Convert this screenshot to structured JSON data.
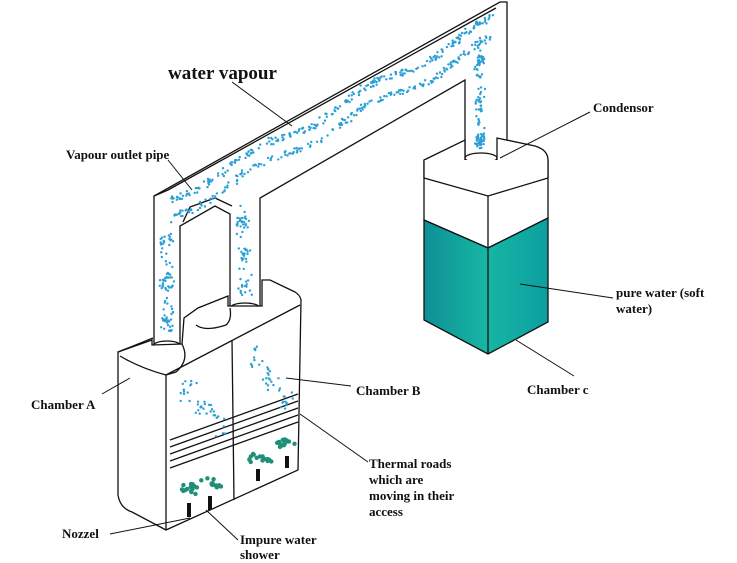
{
  "labels": {
    "water_vapour": "water vapour",
    "vapour_outlet_pipe": "Vapour outlet pipe",
    "condensor": "Condensor",
    "chamber_a": "Chamber A",
    "chamber_b": "Chamber B",
    "chamber_c": "Chamber c",
    "pure_water_line1": "pure water (soft",
    "pure_water_line2": "water)",
    "thermal_line1": "Thermal roads",
    "thermal_line2": "which are",
    "thermal_line3": "moving in their",
    "thermal_line4": "access",
    "nozzel": "Nozzel",
    "impure_line1": "Impure water",
    "impure_line2": "shower"
  },
  "colors": {
    "vapour_dots": "#2a9fd6",
    "pure_water": "#11a7a0",
    "shower_dots": "#1f8f7a",
    "outline": "#111111"
  }
}
